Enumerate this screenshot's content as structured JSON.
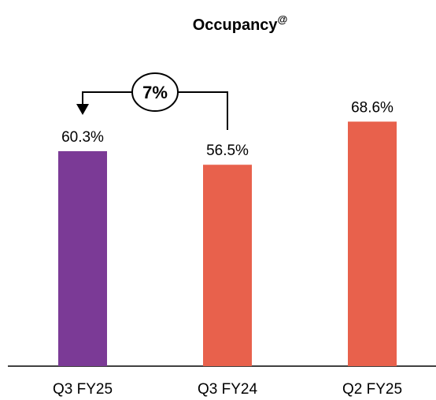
{
  "chart_data": {
    "type": "bar",
    "title": "Occupancy",
    "title_superscript": "@",
    "categories": [
      "Q3 FY25",
      "Q3 FY24",
      "Q2 FY25"
    ],
    "values": [
      60.3,
      56.5,
      68.6
    ],
    "value_labels": [
      "60.3%",
      "56.5%",
      "68.6%"
    ],
    "colors": [
      "#7b3a96",
      "#e8614c",
      "#e8614c"
    ],
    "annotation": "7%",
    "ylim": [
      0,
      100
    ]
  }
}
